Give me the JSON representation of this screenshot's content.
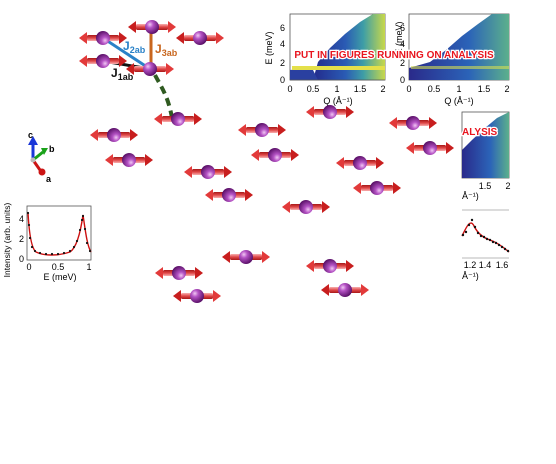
{
  "exchange_labels": {
    "j1": "J",
    "j1_sub": "1ab",
    "j2": "J",
    "j2_sub": "2ab",
    "j3": "J",
    "j3_sub": "3ab"
  },
  "axes_triad": {
    "c": "c",
    "b": "b",
    "a": "a"
  },
  "banner": {
    "full": "PUT IN FIGURES RUNNING ON ANALYSIS",
    "partial": "ALYSIS"
  },
  "heatmap_1": {
    "ylabel": "E (meV)",
    "yticks": [
      "6",
      "4",
      "2",
      "0"
    ],
    "xticks": [
      "0",
      "0.5",
      "1",
      "1.5",
      "2"
    ],
    "xlabel": "Q (Å⁻¹)"
  },
  "heatmap_2": {
    "ylabel": "E (meV)",
    "yticks": [
      "6",
      "4",
      "2",
      "0"
    ],
    "xticks": [
      "0",
      "0.5",
      "1",
      "1.5",
      "2"
    ],
    "xlabel": "Q (Å⁻¹)"
  },
  "heatmap_3": {
    "xticks": [
      "1.5",
      "2"
    ],
    "xlabel": "Å⁻¹)"
  },
  "spectrum_left": {
    "ylabel": "Intensity (arb. units)",
    "xlabel": "E (meV)",
    "yticks": [
      "4",
      "2",
      "0"
    ],
    "xticks": [
      "0",
      "0.5",
      "1"
    ]
  },
  "spectrum_right": {
    "xlabel": "Å⁻¹)",
    "xticks": [
      "1.2",
      "1.4",
      "1.6"
    ]
  },
  "colors": {
    "spin_red": "#d8282a",
    "spin_pink": "#f07878",
    "atom_purple": "#8a2a9a",
    "j1_black": "#111111",
    "j2_blue": "#2a82c8",
    "j3_orange": "#c8661e",
    "dashed_green": "#2f5a20",
    "banner_red": "#e8141e",
    "fit_red": "#cc1010",
    "axis_c_blue": "#1a36d8",
    "axis_b_green": "#1aa21a",
    "axis_a_red": "#cc1414"
  }
}
